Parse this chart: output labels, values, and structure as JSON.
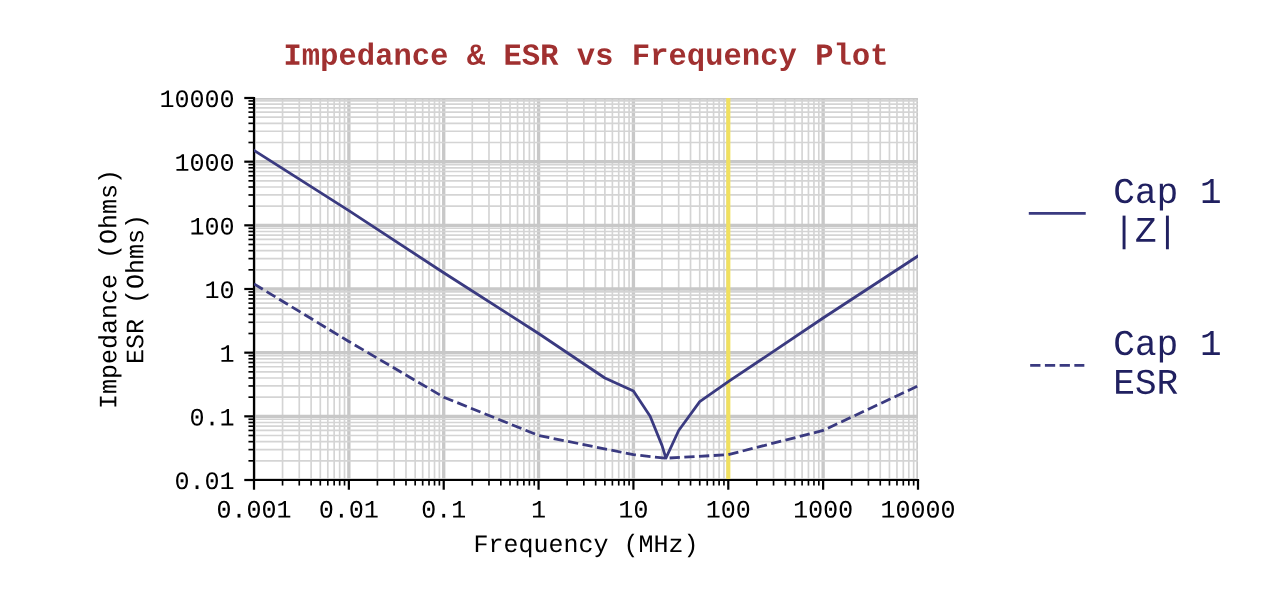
{
  "chart_data": {
    "type": "line",
    "title": "Impedance & ESR vs Frequency Plot",
    "xlabel": "Frequency (MHz)",
    "ylabel": "Impedance (Ohms)\nESR (Ohms)",
    "log": "xy",
    "xlim": [
      0.001,
      10000
    ],
    "ylim": [
      0.01,
      10000
    ],
    "xticks": [
      {
        "value": 0.001,
        "label": "0.001"
      },
      {
        "value": 0.01,
        "label": "0.01"
      },
      {
        "value": 0.1,
        "label": "0.1"
      },
      {
        "value": 1,
        "label": "1"
      },
      {
        "value": 10,
        "label": "10"
      },
      {
        "value": 100,
        "label": "100"
      },
      {
        "value": 1000,
        "label": "1000"
      },
      {
        "value": 10000,
        "label": "10000"
      }
    ],
    "yticks": [
      {
        "value": 0.01,
        "label": "0.01"
      },
      {
        "value": 0.1,
        "label": "0.1"
      },
      {
        "value": 1,
        "label": "1"
      },
      {
        "value": 10,
        "label": "10"
      },
      {
        "value": 100,
        "label": "100"
      },
      {
        "value": 1000,
        "label": "1000"
      },
      {
        "value": 10000,
        "label": "10000"
      }
    ],
    "grid": true,
    "legend": "right",
    "marker": "none",
    "ref_lines": [
      {
        "axis": "x",
        "value": 100,
        "color": "#f0e060"
      }
    ],
    "series": [
      {
        "name": "Cap 1\n|Z|",
        "color": "#3a3a80",
        "line_style": "solid",
        "x": [
          0.001,
          0.01,
          0.1,
          1,
          5,
          10,
          15,
          20,
          22,
          30,
          50,
          100,
          1000,
          10000
        ],
        "values": [
          1500,
          170,
          18,
          2,
          0.4,
          0.25,
          0.1,
          0.035,
          0.022,
          0.06,
          0.17,
          0.35,
          3.5,
          33
        ]
      },
      {
        "name": "Cap 1\nESR",
        "color": "#3a3a80",
        "line_style": "dashed",
        "x": [
          0.001,
          0.01,
          0.1,
          1,
          10,
          22,
          100,
          1000,
          10000
        ],
        "values": [
          12,
          1.5,
          0.2,
          0.05,
          0.025,
          0.022,
          0.025,
          0.06,
          0.3
        ]
      }
    ]
  }
}
